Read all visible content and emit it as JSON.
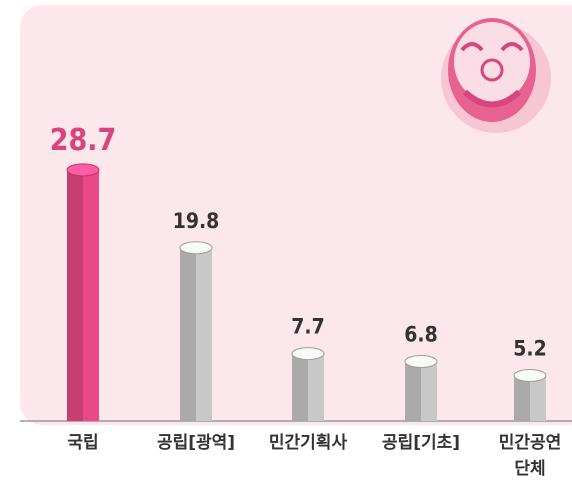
{
  "chart_data": {
    "type": "bar",
    "categories": [
      "국립",
      "공립[광역]",
      "민간기획사",
      "공립[기초]",
      "민간공연\n단체"
    ],
    "values": [
      28.7,
      19.8,
      7.7,
      6.8,
      5.2
    ],
    "colors": [
      "#d8447b",
      "#b8b9b8",
      "#b8b9b8",
      "#b8b9b8",
      "#b8b9b8"
    ]
  }
}
